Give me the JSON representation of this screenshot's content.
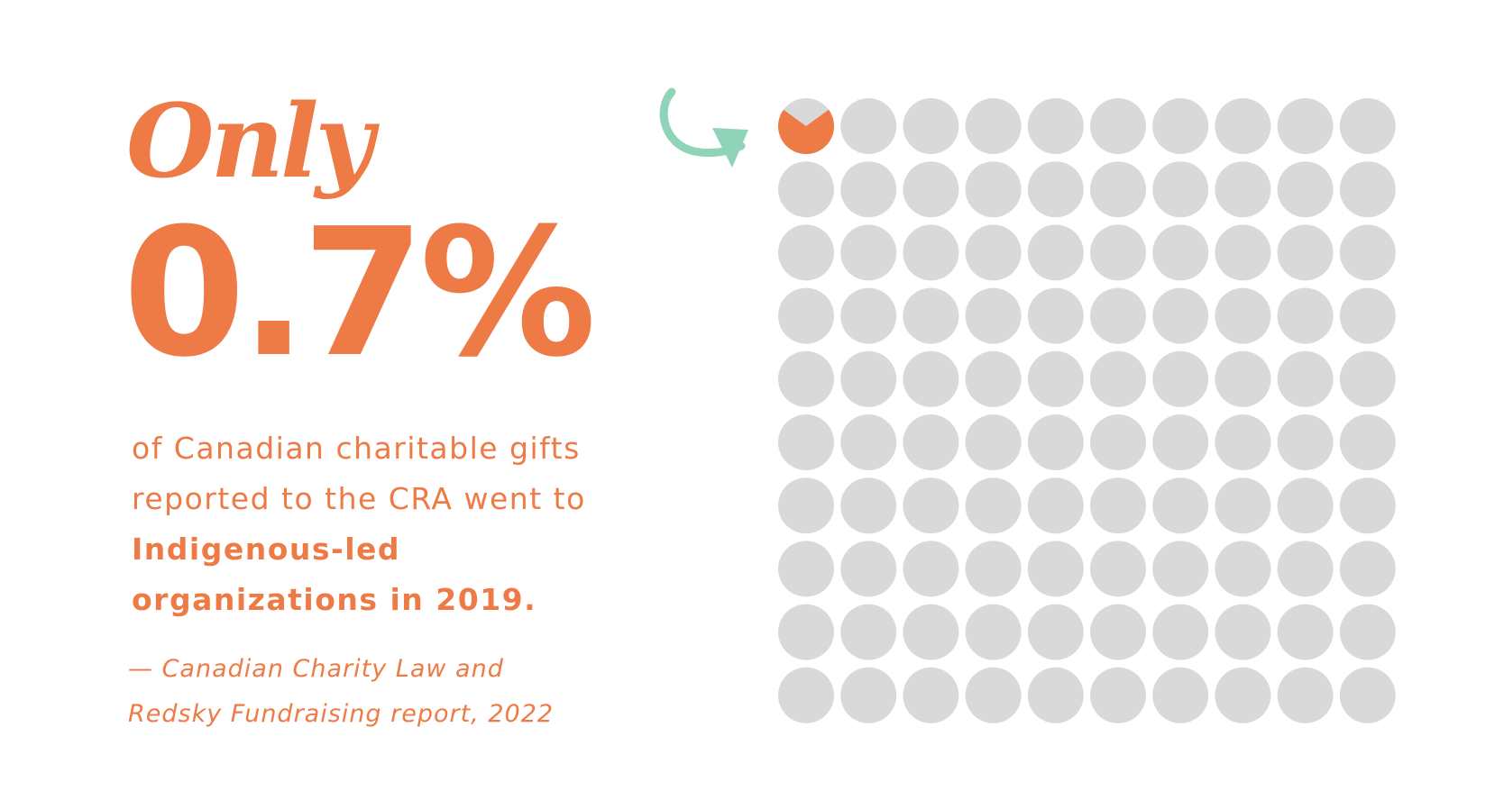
{
  "chart_data": {
    "type": "waffle",
    "title": "Only",
    "values": [
      0.7
    ],
    "value_labels": [
      "0.7%"
    ],
    "text": "of Canadian charitable gifts reported to the CRA went to",
    "emphasis": "Indigenous-led organizations in 2019.",
    "source": "— Canadian Charity Law and Redsky Fundraising report, 2022",
    "colors": [
      "#ee7a45",
      "#d9d9d9"
    ]
  }
}
